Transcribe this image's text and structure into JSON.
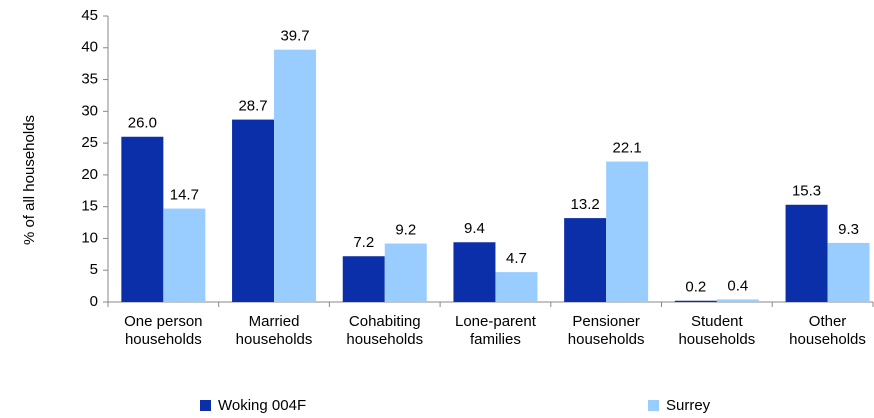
{
  "chart_data": {
    "type": "bar",
    "y_label": "% of all households",
    "categories": [
      "One person\nhouseholds",
      "Married\nhouseholds",
      "Cohabiting\nhouseholds",
      "Lone-parent\nfamilies",
      "Pensioner\nhouseholds",
      "Student\nhouseholds",
      "Other\nhouseholds"
    ],
    "series": [
      {
        "name": "Woking 004F",
        "color": "#0a2fa8",
        "values": [
          26.0,
          28.7,
          7.2,
          9.4,
          13.2,
          0.2,
          15.3
        ],
        "value_labels": [
          "26.0",
          "28.7",
          "7.2",
          "9.4",
          "13.2",
          "0.2",
          "15.3"
        ]
      },
      {
        "name": "Surrey",
        "color": "#99ccff",
        "values": [
          14.7,
          39.7,
          9.2,
          4.7,
          22.1,
          0.4,
          9.3
        ],
        "value_labels": [
          "14.7",
          "39.7",
          "9.2",
          "4.7",
          "22.1",
          "0.4",
          "9.3"
        ]
      }
    ],
    "ylim": [
      0,
      45
    ],
    "yticks": [
      0,
      5,
      10,
      15,
      20,
      25,
      30,
      35,
      40,
      45
    ]
  }
}
